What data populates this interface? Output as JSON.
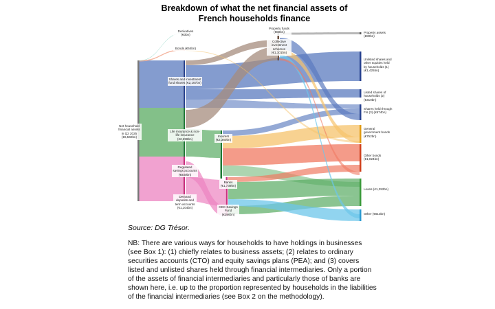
{
  "title": "Breakdown of what the net financial assets of French households finance",
  "nodes": {
    "net": "Net household financial assets in Q2 2025 (€6,560bn)",
    "derivatives": "Derivatives (€0bn)",
    "bonds": "Bonds (€54bn)",
    "shares": "Shares and investment fund shares (€2,167bn)",
    "life": "Life insurance & non-life insurance (€2,296bn)",
    "regulated": "Regulated savings accounts (€930bn)",
    "demand": "Demand deposits and term accounts (€1,104bn)",
    "property_funds": "Property funds (€80bn)",
    "cis": "Collective investment schemes (€1,101bn)",
    "insurers": "Insurers (€2,360bn)",
    "banks": "Banks (€1,739bn)",
    "cdc": "CDC Savings Fund (€396bn)",
    "property_assets": "Property assets (€80bn)",
    "unlisted": "Unlisted shares and other equities held by households (1) (€1,425bn)",
    "listed": "Listed shares of households (2) (€310bn)",
    "shares_fi": "Shares held through FIs (3) (€674bn)",
    "gov_bonds": "General government bonds (€752bn)",
    "other_bonds": "Other bonds (€1,024bn)",
    "loans": "Loans (€1,292bn)",
    "other": "Other (€613bn)"
  },
  "source": "Source: DG Trésor.",
  "note": "NB: There are various ways for households to have holdings in businesses (see Box 1): (1) chiefly relates to business assets; (2) relates to ordinary securities accounts (CTO) and equity savings plans (PEA); and (3) covers listed and unlisted shares held through financial intermediaries. Only a portion of the assets of financial intermediaries and particularly those of banks are shown here, i.e. up to the proportion represented by households in the liabilities of the financial intermediaries (see Box 2 on the methodology)."
}
